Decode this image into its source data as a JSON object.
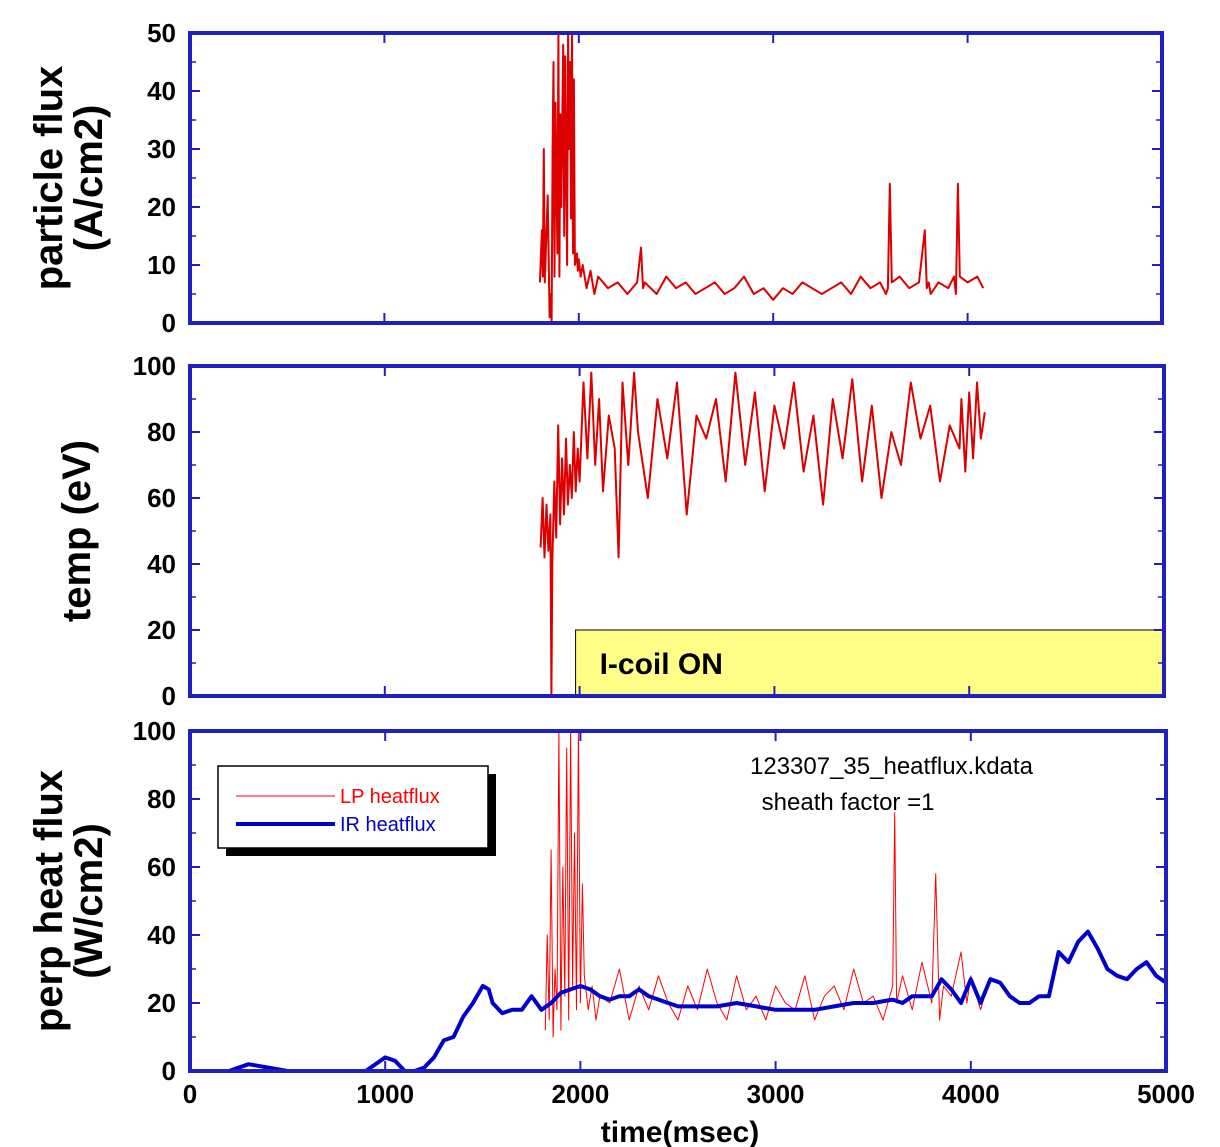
{
  "chart_data": [
    {
      "type": "line",
      "ylabel_lines": [
        "particle  flux",
        "(A/cm2)"
      ],
      "ylim": [
        0,
        50
      ],
      "yticks": [
        0,
        10,
        20,
        30,
        40,
        50
      ],
      "xlim": [
        0,
        5000
      ],
      "line_color": "#dd0000",
      "series": [
        {
          "x": [
            1800,
            1810,
            1815,
            1820,
            1825,
            1830,
            1840,
            1850,
            1855,
            1860,
            1865,
            1870,
            1875,
            1880,
            1890,
            1895,
            1900,
            1905,
            1910,
            1920,
            1925,
            1930,
            1940,
            1945,
            1950,
            1955,
            1960,
            1965,
            1970,
            1975,
            1980,
            1990,
            1995,
            2000,
            2010,
            2020,
            2040,
            2060,
            2080,
            2100,
            2150,
            2200,
            2250,
            2300,
            2320,
            2330,
            2340,
            2400,
            2450,
            2500,
            2550,
            2600,
            2650,
            2700,
            2750,
            2800,
            2850,
            2900,
            2950,
            3000,
            3050,
            3100,
            3150,
            3200,
            3250,
            3300,
            3350,
            3400,
            3450,
            3500,
            3550,
            3580,
            3590,
            3600,
            3610,
            3650,
            3700,
            3750,
            3780,
            3790,
            3800,
            3810,
            3850,
            3900,
            3930,
            3940,
            3950,
            3960,
            4000,
            4050,
            4080
          ],
          "values": [
            7,
            16,
            8,
            30,
            7,
            12,
            22,
            1,
            5,
            0,
            30,
            45,
            8,
            38,
            12,
            50,
            8,
            36,
            20,
            48,
            15,
            46,
            10,
            50,
            30,
            45,
            18,
            50,
            12,
            42,
            10,
            12,
            9,
            11,
            8,
            10,
            6,
            9,
            5,
            8,
            6,
            7,
            5,
            7,
            13,
            6,
            7,
            5,
            8,
            6,
            7,
            5,
            6,
            7,
            5,
            6,
            8,
            5,
            6,
            4,
            6,
            5,
            7,
            6,
            5,
            6,
            7,
            5,
            8,
            6,
            7,
            5,
            6,
            24,
            7,
            8,
            6,
            7,
            16,
            6,
            7,
            5,
            7,
            6,
            8,
            5,
            24,
            8,
            7,
            8,
            6
          ]
        }
      ]
    },
    {
      "type": "line",
      "ylabel_lines": [
        "temp  (eV)"
      ],
      "ylim": [
        0,
        100
      ],
      "yticks": [
        0,
        20,
        40,
        60,
        80,
        100
      ],
      "xlim": [
        0,
        5000
      ],
      "line_color": "#dd0000",
      "series": [
        {
          "x": [
            1800,
            1810,
            1820,
            1830,
            1840,
            1850,
            1855,
            1860,
            1870,
            1880,
            1890,
            1900,
            1910,
            1920,
            1930,
            1940,
            1950,
            1960,
            1970,
            1980,
            1990,
            2000,
            2020,
            2040,
            2060,
            2080,
            2100,
            2120,
            2150,
            2180,
            2200,
            2220,
            2250,
            2280,
            2300,
            2350,
            2400,
            2450,
            2500,
            2550,
            2600,
            2650,
            2700,
            2750,
            2800,
            2850,
            2900,
            2950,
            3000,
            3050,
            3100,
            3150,
            3200,
            3250,
            3300,
            3350,
            3400,
            3450,
            3500,
            3550,
            3600,
            3650,
            3700,
            3750,
            3800,
            3850,
            3900,
            3950,
            3960,
            3980,
            4000,
            4020,
            4040,
            4060,
            4080
          ],
          "values": [
            45,
            60,
            42,
            58,
            44,
            55,
            0,
            40,
            65,
            48,
            82,
            52,
            72,
            55,
            78,
            58,
            70,
            60,
            80,
            62,
            75,
            65,
            95,
            72,
            98,
            70,
            90,
            62,
            85,
            75,
            42,
            95,
            70,
            98,
            80,
            60,
            90,
            72,
            95,
            55,
            85,
            78,
            90,
            65,
            98,
            70,
            92,
            62,
            88,
            75,
            95,
            68,
            85,
            58,
            90,
            72,
            96,
            65,
            88,
            60,
            80,
            70,
            95,
            78,
            88,
            65,
            82,
            75,
            90,
            68,
            92,
            72,
            95,
            78,
            86
          ]
        }
      ],
      "annotation_box": {
        "label": "I-coil  ON",
        "x_start": 2000,
        "x_end": 5000,
        "y_top": 20
      }
    },
    {
      "type": "line",
      "ylabel_lines": [
        "perp heat flux",
        "(W/cm2)"
      ],
      "ylim": [
        0,
        100
      ],
      "yticks": [
        0,
        20,
        40,
        60,
        80,
        100
      ],
      "xlim": [
        0,
        5000
      ],
      "xticks": [
        0,
        1000,
        2000,
        3000,
        4000,
        5000
      ],
      "xlabel": "time(msec)",
      "legend": {
        "placement": "top-left"
      },
      "annotations": [
        "123307_35_heatflux.kdata",
        " sheath factor =1"
      ],
      "series": [
        {
          "name": "LP heatflux",
          "color": "#ff0000",
          "x": [
            1820,
            1830,
            1840,
            1850,
            1860,
            1870,
            1880,
            1890,
            1900,
            1910,
            1920,
            1930,
            1940,
            1950,
            1960,
            1970,
            1980,
            1990,
            2000,
            2010,
            2020,
            2040,
            2060,
            2080,
            2100,
            2150,
            2200,
            2250,
            2300,
            2350,
            2400,
            2450,
            2500,
            2550,
            2600,
            2650,
            2700,
            2750,
            2800,
            2850,
            2900,
            2950,
            3000,
            3050,
            3100,
            3150,
            3200,
            3250,
            3300,
            3350,
            3400,
            3450,
            3500,
            3550,
            3600,
            3610,
            3620,
            3650,
            3700,
            3750,
            3800,
            3820,
            3840,
            3860,
            3900,
            3950,
            3980,
            4000,
            4050,
            4080
          ],
          "values": [
            12,
            40,
            15,
            65,
            10,
            30,
            18,
            100,
            12,
            60,
            22,
            95,
            15,
            100,
            25,
            70,
            18,
            100,
            20,
            55,
            28,
            18,
            25,
            15,
            22,
            20,
            30,
            15,
            25,
            18,
            28,
            20,
            15,
            25,
            18,
            30,
            20,
            15,
            28,
            18,
            22,
            15,
            25,
            20,
            18,
            28,
            15,
            22,
            25,
            18,
            30,
            20,
            22,
            15,
            25,
            76,
            20,
            28,
            18,
            32,
            20,
            58,
            15,
            25,
            22,
            35,
            20,
            28,
            18,
            24
          ]
        },
        {
          "name": "IR heatflux",
          "color": "#0000cc",
          "x": [
            100,
            200,
            300,
            400,
            500,
            600,
            700,
            800,
            900,
            1000,
            1050,
            1100,
            1150,
            1200,
            1250,
            1300,
            1350,
            1400,
            1450,
            1500,
            1530,
            1550,
            1600,
            1650,
            1700,
            1750,
            1800,
            1850,
            1900,
            1950,
            2000,
            2050,
            2100,
            2150,
            2200,
            2250,
            2300,
            2350,
            2400,
            2500,
            2600,
            2700,
            2800,
            2900,
            3000,
            3100,
            3200,
            3300,
            3400,
            3500,
            3600,
            3650,
            3700,
            3750,
            3800,
            3850,
            3900,
            3950,
            4000,
            4050,
            4100,
            4150,
            4200,
            4250,
            4300,
            4350,
            4400,
            4450,
            4500,
            4550,
            4600,
            4650,
            4700,
            4750,
            4800,
            4850,
            4900,
            4950,
            5000
          ],
          "values": [
            0,
            0,
            2,
            1,
            0,
            0,
            0,
            0,
            0,
            4,
            3,
            0,
            0,
            1,
            4,
            9,
            10,
            16,
            20,
            25,
            24,
            20,
            17,
            18,
            18,
            22,
            18,
            20,
            23,
            24,
            25,
            24,
            22,
            21,
            22,
            22,
            24,
            22,
            21,
            19,
            19,
            19,
            20,
            19,
            18,
            18,
            18,
            19,
            20,
            20,
            21,
            20,
            22,
            22,
            22,
            27,
            24,
            20,
            27,
            20,
            27,
            26,
            22,
            20,
            20,
            22,
            22,
            35,
            32,
            38,
            41,
            36,
            30,
            28,
            27,
            30,
            32,
            28,
            26
          ]
        }
      ]
    }
  ]
}
